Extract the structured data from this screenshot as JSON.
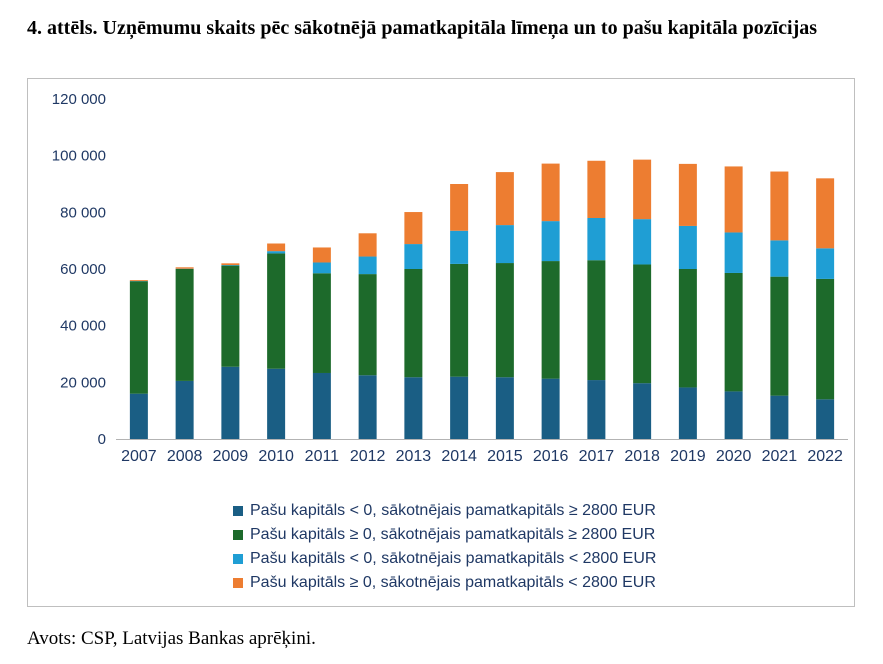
{
  "title": "4. attēls. Uzņēmumu skaits pēc sākotnējā pamatkapitāla līmeņa un to pašu kapitāla pozīcijas",
  "source": "Avots: CSP, Latvijas Bankas aprēķini.",
  "chart_data": {
    "type": "bar",
    "stacked": true,
    "categories": [
      "2007",
      "2008",
      "2009",
      "2010",
      "2011",
      "2012",
      "2013",
      "2014",
      "2015",
      "2016",
      "2017",
      "2018",
      "2019",
      "2020",
      "2021",
      "2022"
    ],
    "ylim": [
      0,
      120000
    ],
    "yticks": [
      0,
      20000,
      40000,
      60000,
      80000,
      100000,
      120000
    ],
    "ytick_labels": [
      "0",
      "20 000",
      "40 000",
      "60 000",
      "80 000",
      "100 000",
      "120 000"
    ],
    "grid": false,
    "legend_position": "bottom",
    "series": [
      {
        "name": "Pašu kapitāls < 0, sākotnējais pamatkapitāls ≥ 2800 EUR",
        "color": "#1a5e84",
        "values": [
          16000,
          20500,
          25500,
          24800,
          23300,
          22500,
          21800,
          22000,
          21800,
          21300,
          20800,
          19700,
          18200,
          16800,
          15300,
          14000
        ]
      },
      {
        "name": "Pašu kapitāls ≥ 0, sākotnējais pamatkapitāls ≥ 2800 EUR",
        "color": "#1d6a2b",
        "values": [
          39700,
          39500,
          35700,
          40700,
          35200,
          35700,
          38200,
          39800,
          40300,
          41500,
          42300,
          41900,
          41800,
          41800,
          42000,
          42500
        ]
      },
      {
        "name": "Pašu kapitāls < 0, sākotnējais pamatkapitāls < 2800 EUR",
        "color": "#1f9ed4",
        "values": [
          100,
          100,
          200,
          800,
          3800,
          6200,
          8800,
          11700,
          13400,
          14100,
          14900,
          16000,
          15200,
          14300,
          12800,
          10800
        ]
      },
      {
        "name": "Pašu kapitāls ≥ 0, sākotnējais pamatkapitāls < 2800 EUR",
        "color": "#ed7d31",
        "values": [
          300,
          500,
          600,
          2700,
          5300,
          8200,
          11300,
          16500,
          18700,
          20300,
          20200,
          21000,
          21900,
          23300,
          24300,
          24700
        ]
      }
    ]
  }
}
